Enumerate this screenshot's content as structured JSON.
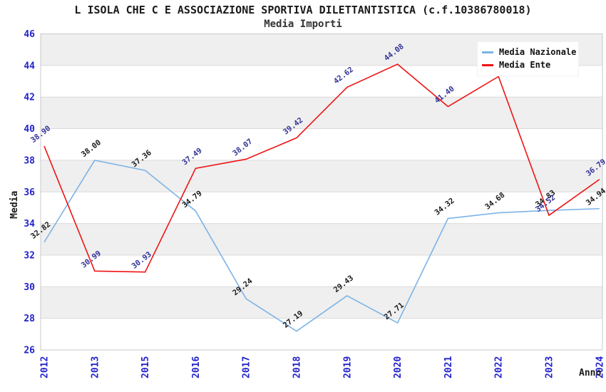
{
  "title": "L ISOLA CHE C E ASSOCIAZIONE SPORTIVA DILETTANTISTICA (c.f.10386780018)",
  "subtitle": "Media Importi",
  "legend": {
    "items": [
      {
        "label": "Media Nazionale",
        "color": "#7CB3E6"
      },
      {
        "label": "Media Ente",
        "color": "#EE1414"
      }
    ]
  },
  "axes": {
    "x_title": "Anno",
    "y_title": "Media",
    "y_min": 26,
    "y_max": 46,
    "y_step": 2,
    "y_tick_labels": [
      "26",
      "28",
      "30",
      "32",
      "34",
      "36",
      "38",
      "40",
      "42",
      "44",
      "46"
    ],
    "x_tick_labels": [
      "2012",
      "2013",
      "2015",
      "2016",
      "2017",
      "2018",
      "2019",
      "2020",
      "2021",
      "2022",
      "2023",
      "2024"
    ]
  },
  "style": {
    "band_color": "#EFEFEF",
    "grid_color": "#DBDBDB",
    "border_color": "#C9C9C9",
    "tick_color": "#2222CC",
    "axis_title_color": "#1A1A1A"
  },
  "chart_data": {
    "type": "line",
    "title": "Media Importi",
    "xlabel": "Anno",
    "ylabel": "Media",
    "ylim": [
      26,
      46
    ],
    "grid": true,
    "legend_position": "top-right",
    "categories": [
      "2012",
      "2013",
      "2015",
      "2016",
      "2017",
      "2018",
      "2019",
      "2020",
      "2021",
      "2022",
      "2023",
      "2024"
    ],
    "series": [
      {
        "name": "Media Nazionale",
        "color": "#7CB3E6",
        "label_color": "#1A1A1A",
        "values": [
          32.82,
          38.0,
          37.36,
          34.79,
          29.24,
          27.19,
          29.43,
          27.71,
          34.32,
          34.68,
          34.83,
          34.94
        ],
        "labels": [
          "32.82",
          "38.00",
          "37.36",
          "34.79",
          "29.24",
          "27.19",
          "29.43",
          "27.71",
          "34.32",
          "34.68",
          "34.83",
          "34.94"
        ]
      },
      {
        "name": "Media Ente",
        "color": "#EE1414",
        "label_color": "#333399",
        "values": [
          38.9,
          30.99,
          30.93,
          37.49,
          38.07,
          39.42,
          42.62,
          44.08,
          41.4,
          43.3,
          34.52,
          36.79
        ],
        "labels": [
          "38.90",
          "30.99",
          "30.93",
          "37.49",
          "38.07",
          "39.42",
          "42.62",
          "44.08",
          "41.40",
          null,
          "34.52",
          "36.79"
        ]
      }
    ]
  }
}
